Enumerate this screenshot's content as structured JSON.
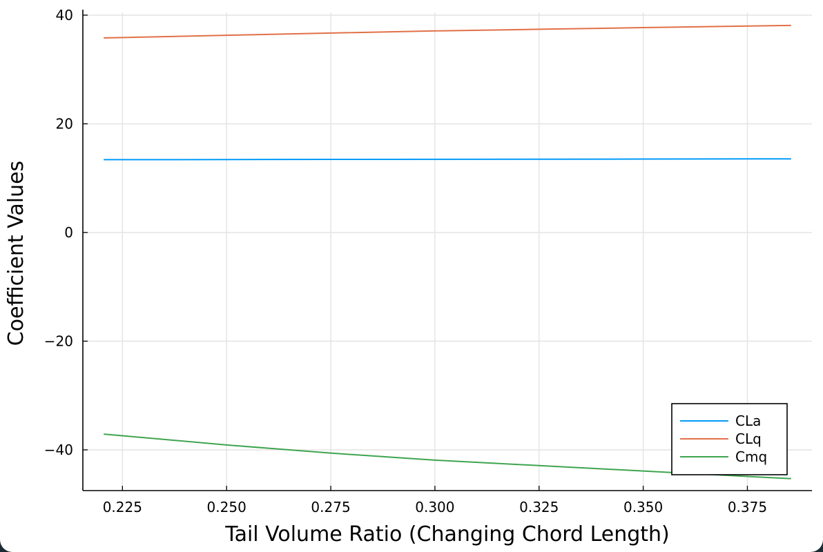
{
  "chart_data": {
    "type": "line",
    "xlabel": "Tail Volume Ratio (Changing Chord Length)",
    "ylabel": "Coefficient Values",
    "xlim": [
      0.2155,
      0.3905
    ],
    "ylim": [
      -47.5,
      40.5
    ],
    "x_ticks": [
      0.225,
      0.25,
      0.275,
      0.3,
      0.325,
      0.35,
      0.375
    ],
    "x_tick_labels": [
      "0.225",
      "0.250",
      "0.275",
      "0.300",
      "0.325",
      "0.350",
      "0.375"
    ],
    "y_ticks": [
      40,
      20,
      0,
      -20,
      -40
    ],
    "y_tick_labels": [
      "40",
      "20",
      "0",
      "−20",
      "−40"
    ],
    "grid": true,
    "legend_position": "bottom-right",
    "series": [
      {
        "name": "CLa",
        "color": "#009af9",
        "x": [
          0.2205,
          0.25,
          0.275,
          0.3,
          0.325,
          0.35,
          0.375,
          0.3855
        ],
        "y": [
          13.4,
          13.42,
          13.45,
          13.47,
          13.49,
          13.51,
          13.54,
          13.55
        ]
      },
      {
        "name": "CLq",
        "color": "#e26f46",
        "x": [
          0.2205,
          0.25,
          0.275,
          0.3,
          0.325,
          0.35,
          0.375,
          0.3855
        ],
        "y": [
          35.8,
          36.3,
          36.7,
          37.1,
          37.4,
          37.7,
          38.0,
          38.1
        ]
      },
      {
        "name": "Cmq",
        "color": "#3ea44e",
        "x": [
          0.2205,
          0.25,
          0.275,
          0.3,
          0.325,
          0.35,
          0.375,
          0.3855
        ],
        "y": [
          -37.1,
          -39.1,
          -40.6,
          -41.9,
          -42.9,
          -43.9,
          -44.9,
          -45.3
        ]
      }
    ]
  }
}
